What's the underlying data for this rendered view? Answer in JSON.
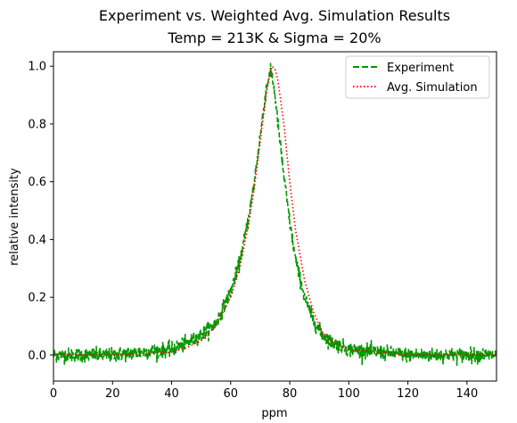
{
  "chart_data": {
    "type": "line",
    "title": "Experiment vs. Weighted Avg. Simulation Results",
    "subtitle": "Temp = 213K & Sigma = 20%",
    "xlabel": "ppm",
    "ylabel": "relative intensity",
    "xlim": [
      0,
      150
    ],
    "ylim": [
      -0.09,
      1.05
    ],
    "x_ticks": [
      0,
      20,
      40,
      60,
      80,
      100,
      120,
      140
    ],
    "x_tick_labels": [
      "0",
      "20",
      "40",
      "60",
      "80",
      "100",
      "120",
      "140"
    ],
    "y_ticks": [
      0.0,
      0.2,
      0.4,
      0.6,
      0.8,
      1.0
    ],
    "y_tick_labels": [
      "0.0",
      "0.2",
      "0.4",
      "0.6",
      "0.8",
      "1.0"
    ],
    "grid": false,
    "legend_position": "top-right",
    "series": [
      {
        "name": "Experiment",
        "color": "#009900",
        "style": "dashed",
        "x": [
          0,
          10,
          20,
          30,
          40,
          45,
          50,
          55,
          60,
          63,
          66,
          68,
          70,
          72,
          73,
          74,
          75,
          76,
          78,
          80,
          82,
          85,
          88,
          91,
          95,
          100,
          110,
          120,
          130,
          140,
          150
        ],
        "y": [
          0.0,
          0.0,
          0.0,
          0.01,
          0.02,
          0.04,
          0.07,
          0.11,
          0.22,
          0.32,
          0.47,
          0.6,
          0.76,
          0.92,
          0.97,
          0.97,
          0.9,
          0.8,
          0.62,
          0.46,
          0.33,
          0.2,
          0.12,
          0.07,
          0.04,
          0.02,
          0.01,
          0.0,
          0.0,
          0.0,
          0.0
        ],
        "noise": 0.012
      },
      {
        "name": "Avg. Simulation",
        "color": "#ff0000",
        "style": "dotted",
        "x": [
          0,
          10,
          20,
          30,
          40,
          45,
          50,
          55,
          60,
          63,
          66,
          68,
          70,
          72,
          73,
          74,
          75,
          76,
          78,
          80,
          82,
          85,
          88,
          91,
          95,
          100,
          110,
          120,
          130,
          140,
          150
        ],
        "y": [
          0.0,
          0.0,
          0.0,
          0.005,
          0.01,
          0.025,
          0.05,
          0.1,
          0.2,
          0.3,
          0.45,
          0.58,
          0.74,
          0.9,
          0.96,
          1.0,
          0.99,
          0.95,
          0.8,
          0.6,
          0.43,
          0.26,
          0.15,
          0.08,
          0.04,
          0.02,
          0.01,
          0.0,
          0.0,
          0.0,
          0.0
        ],
        "noise": 0
      }
    ]
  }
}
